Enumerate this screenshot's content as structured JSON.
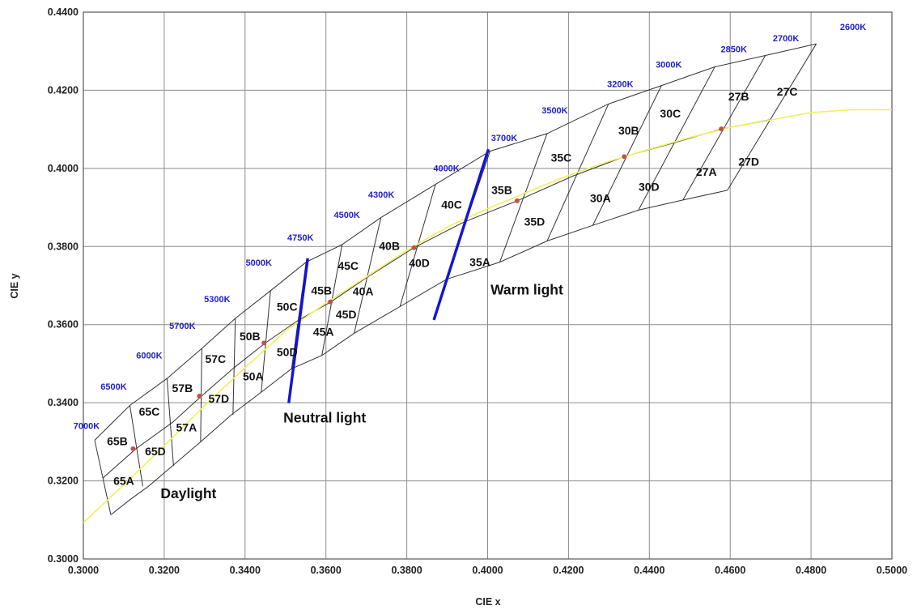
{
  "chart_data": {
    "type": "scatter",
    "xlabel": "CIE x",
    "ylabel": "CIE y",
    "xlim": [
      0.3,
      0.5
    ],
    "ylim": [
      0.3,
      0.44
    ],
    "grid": true,
    "x_ticks": [
      "0.3000",
      "0.3200",
      "0.3400",
      "0.3600",
      "0.3800",
      "0.4000",
      "0.4200",
      "0.4400",
      "0.4600",
      "0.4800",
      "0.5000"
    ],
    "y_ticks": [
      "0.3000",
      "0.3200",
      "0.3400",
      "0.3600",
      "0.3800",
      "0.4000",
      "0.4200",
      "0.4400"
    ],
    "colors": {
      "cct_text": "#1f1fcc",
      "locus": "#f2ef5a",
      "divider": "#1414d2",
      "grid": "#8c8c8c",
      "quad": "#333333",
      "point": "#c0504d"
    },
    "cct_labels": [
      {
        "text": "7000K",
        "x": 0.3008,
        "y": 0.3341
      },
      {
        "text": "6500K",
        "x": 0.3075,
        "y": 0.3442
      },
      {
        "text": "6000K",
        "x": 0.3163,
        "y": 0.3522
      },
      {
        "text": "5700K",
        "x": 0.3245,
        "y": 0.3597
      },
      {
        "text": "5300K",
        "x": 0.3331,
        "y": 0.3666
      },
      {
        "text": "5000K",
        "x": 0.3434,
        "y": 0.3759
      },
      {
        "text": "4750K",
        "x": 0.3537,
        "y": 0.3823
      },
      {
        "text": "4500K",
        "x": 0.3652,
        "y": 0.3882
      },
      {
        "text": "4300K",
        "x": 0.3737,
        "y": 0.3933
      },
      {
        "text": "4000K",
        "x": 0.3898,
        "y": 0.4001
      },
      {
        "text": "3700K",
        "x": 0.4041,
        "y": 0.4079
      },
      {
        "text": "3500K",
        "x": 0.4166,
        "y": 0.4149
      },
      {
        "text": "3200K",
        "x": 0.4328,
        "y": 0.4216
      },
      {
        "text": "3000K",
        "x": 0.4448,
        "y": 0.4266
      },
      {
        "text": "2850K",
        "x": 0.4609,
        "y": 0.4306
      },
      {
        "text": "2700K",
        "x": 0.4738,
        "y": 0.4334
      },
      {
        "text": "2600K",
        "x": 0.4904,
        "y": 0.4363
      }
    ],
    "bins": [
      {
        "name": "65A",
        "x": 0.31,
        "y": 0.32
      },
      {
        "name": "65B",
        "x": 0.3084,
        "y": 0.3302
      },
      {
        "name": "65C",
        "x": 0.3163,
        "y": 0.3378
      },
      {
        "name": "65D",
        "x": 0.3178,
        "y": 0.3276
      },
      {
        "name": "57A",
        "x": 0.3255,
        "y": 0.3337
      },
      {
        "name": "57B",
        "x": 0.3245,
        "y": 0.3438
      },
      {
        "name": "57C",
        "x": 0.3327,
        "y": 0.3512
      },
      {
        "name": "57D",
        "x": 0.3335,
        "y": 0.3411
      },
      {
        "name": "50A",
        "x": 0.342,
        "y": 0.3468
      },
      {
        "name": "50B",
        "x": 0.3412,
        "y": 0.357
      },
      {
        "name": "50C",
        "x": 0.3504,
        "y": 0.3646
      },
      {
        "name": "50D",
        "x": 0.3504,
        "y": 0.353
      },
      {
        "name": "45A",
        "x": 0.3594,
        "y": 0.3582
      },
      {
        "name": "45B",
        "x": 0.3589,
        "y": 0.3688
      },
      {
        "name": "45C",
        "x": 0.3655,
        "y": 0.3751
      },
      {
        "name": "45D",
        "x": 0.365,
        "y": 0.3626
      },
      {
        "name": "40A",
        "x": 0.3692,
        "y": 0.3685
      },
      {
        "name": "40B",
        "x": 0.3757,
        "y": 0.3802
      },
      {
        "name": "40C",
        "x": 0.3911,
        "y": 0.3907
      },
      {
        "name": "40D",
        "x": 0.3831,
        "y": 0.3758
      },
      {
        "name": "35A",
        "x": 0.3981,
        "y": 0.376
      },
      {
        "name": "35B",
        "x": 0.4035,
        "y": 0.3945
      },
      {
        "name": "35C",
        "x": 0.4182,
        "y": 0.4028
      },
      {
        "name": "35D",
        "x": 0.4116,
        "y": 0.3864
      },
      {
        "name": "30A",
        "x": 0.4279,
        "y": 0.3924
      },
      {
        "name": "30B",
        "x": 0.4349,
        "y": 0.4097
      },
      {
        "name": "30C",
        "x": 0.4452,
        "y": 0.4141
      },
      {
        "name": "30D",
        "x": 0.4399,
        "y": 0.3953
      },
      {
        "name": "27A",
        "x": 0.4541,
        "y": 0.3991
      },
      {
        "name": "27B",
        "x": 0.4621,
        "y": 0.4184
      },
      {
        "name": "27C",
        "x": 0.4741,
        "y": 0.4197
      },
      {
        "name": "27D",
        "x": 0.4646,
        "y": 0.4017
      }
    ],
    "centers": [
      {
        "x": 0.3123,
        "y": 0.3282
      },
      {
        "x": 0.3287,
        "y": 0.3417
      },
      {
        "x": 0.3447,
        "y": 0.3553
      },
      {
        "x": 0.3611,
        "y": 0.3658
      },
      {
        "x": 0.3818,
        "y": 0.3797
      },
      {
        "x": 0.4073,
        "y": 0.3917
      },
      {
        "x": 0.4338,
        "y": 0.403
      },
      {
        "x": 0.4578,
        "y": 0.4101
      }
    ],
    "regions": [
      {
        "name": "Daylight",
        "x": 0.326,
        "y": 0.3168
      },
      {
        "name": "Neutral light",
        "x": 0.3597,
        "y": 0.3362
      },
      {
        "name": "Warm light",
        "x": 0.4097,
        "y": 0.369
      }
    ]
  }
}
